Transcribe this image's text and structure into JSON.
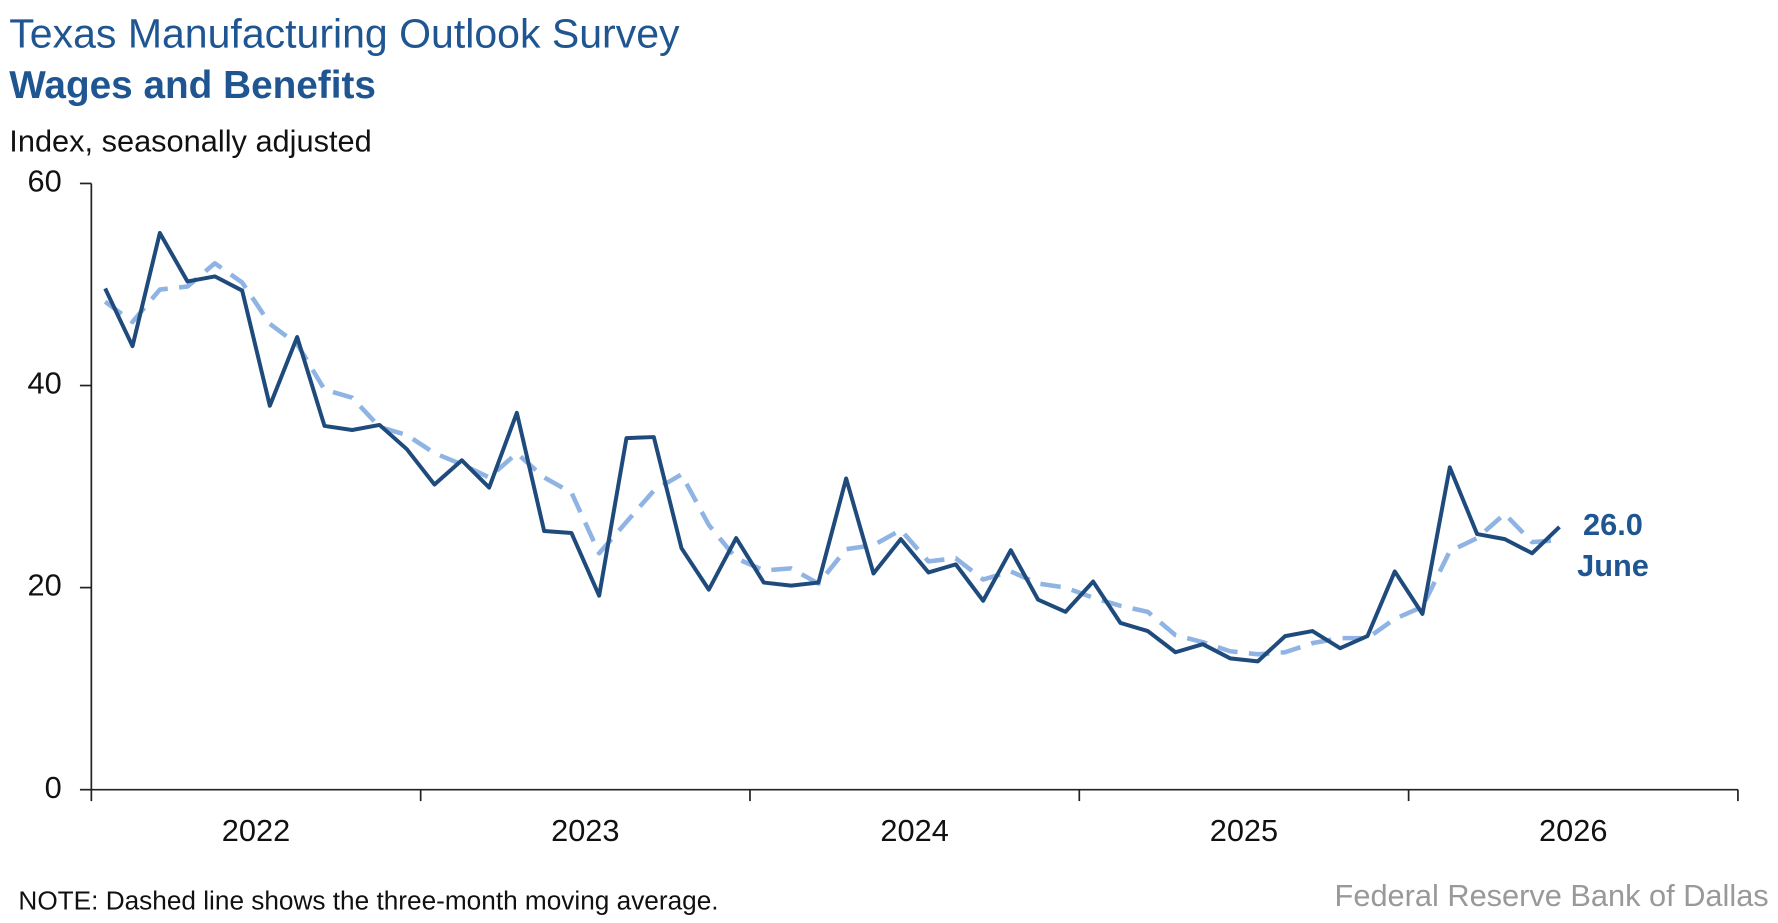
{
  "chart_data": {
    "type": "line",
    "title": "Texas Manufacturing Outlook Survey",
    "subtitle": "Wages and Benefits",
    "y_label": "Index, seasonally adjusted",
    "note": "NOTE: Dashed line shows the three-month moving average.",
    "source": "Federal Reserve Bank of Dallas",
    "annotations": [
      "26.0",
      "June"
    ],
    "x": [
      2022.042,
      2022.125,
      2022.208,
      2022.292,
      2022.375,
      2022.458,
      2022.542,
      2022.625,
      2022.708,
      2022.792,
      2022.875,
      2022.958,
      2023.042,
      2023.125,
      2023.208,
      2023.292,
      2023.375,
      2023.458,
      2023.542,
      2023.625,
      2023.708,
      2023.792,
      2023.875,
      2023.958,
      2024.042,
      2024.125,
      2024.208,
      2024.292,
      2024.375,
      2024.458,
      2024.542,
      2024.625,
      2024.708,
      2024.792,
      2024.875,
      2024.958,
      2025.042,
      2025.125,
      2025.208,
      2025.292,
      2025.375,
      2025.458,
      2025.542,
      2025.625,
      2025.708,
      2025.792,
      2025.875,
      2025.958,
      2026.042,
      2026.125,
      2026.208,
      2026.292,
      2026.375,
      2026.458
    ],
    "series": [
      {
        "name": "Index",
        "color": "#1f4a7c",
        "style": "solid",
        "values": [
          49.6,
          43.9,
          55.1,
          50.3,
          50.8,
          49.4,
          38.0,
          44.8,
          36.0,
          35.6,
          36.1,
          33.7,
          30.2,
          32.6,
          29.9,
          37.3,
          25.6,
          25.4,
          19.2,
          34.8,
          34.9,
          23.9,
          19.8,
          24.9,
          20.5,
          20.2,
          20.5,
          30.8,
          21.4,
          24.8,
          21.5,
          22.3,
          18.7,
          23.7,
          18.8,
          17.6,
          20.6,
          16.5,
          15.7,
          13.6,
          14.4,
          13.0,
          12.7,
          15.2,
          15.7,
          14.0,
          15.2,
          21.6,
          17.4,
          31.9,
          25.3,
          24.8,
          23.4,
          26.0
        ]
      },
      {
        "name": "Three-month moving average",
        "color": "#8fb4e3",
        "style": "dashed",
        "values": [
          48.3,
          46.3,
          49.5,
          49.8,
          52.1,
          50.2,
          46.1,
          44.1,
          39.6,
          38.8,
          35.9,
          35.1,
          33.3,
          32.2,
          30.9,
          33.3,
          30.9,
          29.4,
          23.4,
          26.5,
          29.6,
          31.2,
          26.2,
          22.9,
          21.7,
          21.9,
          20.4,
          23.8,
          24.2,
          25.7,
          22.6,
          22.9,
          20.8,
          21.6,
          20.4,
          20.0,
          19.0,
          18.2,
          17.6,
          15.3,
          14.6,
          13.7,
          13.4,
          13.6,
          14.5,
          15.0,
          15.0,
          16.9,
          18.1,
          23.6,
          24.9,
          27.3,
          24.5,
          24.7
        ]
      }
    ],
    "xlim": [
      2022,
      2027
    ],
    "xticks": [
      2022,
      2023,
      2024,
      2025,
      2026,
      2027
    ],
    "xlabels": [
      {
        "value": 2022.5,
        "label": "2022"
      },
      {
        "value": 2023.5,
        "label": "2023"
      },
      {
        "value": 2024.5,
        "label": "2024"
      },
      {
        "value": 2025.5,
        "label": "2025"
      },
      {
        "value": 2026.5,
        "label": "2026"
      }
    ],
    "ylim": [
      0,
      60
    ],
    "yticks": [
      0,
      20,
      40,
      60
    ],
    "grid": false
  }
}
